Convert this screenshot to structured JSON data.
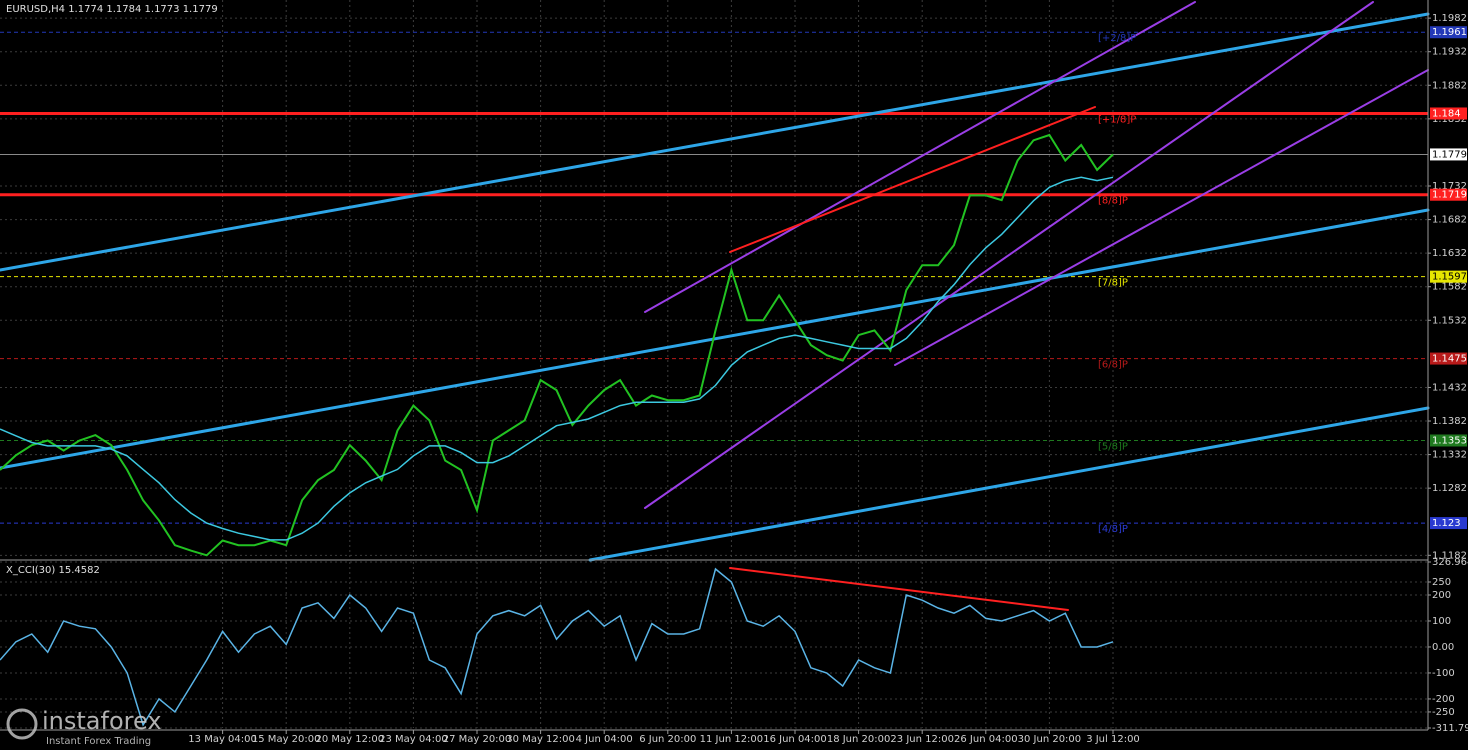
{
  "chart_data": [
    {
      "type": "line",
      "title": "EURUSD,H4  1.1774 1.1784 1.1773 1.1779",
      "categories": [
        null,
        null,
        null,
        null,
        null,
        null,
        null,
        null,
        null,
        null,
        null,
        null,
        null,
        null,
        "13 May 04:00",
        null,
        null,
        null,
        "15 May 20:00",
        null,
        null,
        null,
        "20 May 12:00",
        null,
        null,
        null,
        "23 May 04:00",
        null,
        null,
        null,
        "27 May 20:00",
        null,
        null,
        null,
        "30 May 12:00",
        null,
        null,
        null,
        "4 Jun 04:00",
        null,
        null,
        null,
        "6 Jun 20:00",
        null,
        null,
        null,
        "11 Jun 12:00",
        null,
        null,
        null,
        "16 Jun 04:00",
        null,
        null,
        null,
        "18 Jun 20:00",
        null,
        null,
        null,
        "23 Jun 12:00",
        null,
        null,
        null,
        "26 Jun 04:00",
        null,
        null,
        null,
        "30 Jun 20:00",
        null,
        null,
        null,
        "3 Jul 12:00"
      ],
      "series": [
        {
          "color": "#22c222",
          "values": [
            1.1309,
            1.1331,
            1.1346,
            1.1353,
            1.1338,
            1.1353,
            1.1361,
            1.1346,
            1.1309,
            1.1264,
            1.1234,
            1.1197,
            1.1189,
            1.1182,
            1.1204,
            1.1197,
            1.1197,
            1.1204,
            1.1197,
            1.1264,
            1.1294,
            1.1309,
            1.1346,
            1.1323,
            1.1294,
            1.1368,
            1.1405,
            1.1383,
            1.1323,
            1.1309,
            1.1249,
            1.1353,
            1.1368,
            1.1383,
            1.1443,
            1.1428,
            1.1376,
            1.1405,
            1.1428,
            1.1443,
            1.1405,
            1.142,
            1.1413,
            1.1413,
            1.142,
            1.1517,
            1.1607,
            1.1532,
            1.1532,
            1.1569,
            1.1532,
            1.1495,
            1.148,
            1.1472,
            1.151,
            1.1517,
            1.1487,
            1.1577,
            1.1614,
            1.1614,
            1.1644,
            1.1718,
            1.1718,
            1.1711,
            1.177,
            1.18,
            1.1808,
            1.177,
            1.1793,
            1.1756,
            1.1779
          ]
        },
        {
          "color": "#3cc8e0",
          "values": [
            1.137,
            1.136,
            1.135,
            1.1345,
            1.1345,
            1.1345,
            1.1345,
            1.134,
            1.133,
            1.131,
            1.129,
            1.1265,
            1.1245,
            1.123,
            1.1222,
            1.1215,
            1.121,
            1.1205,
            1.1205,
            1.1215,
            1.123,
            1.1255,
            1.1275,
            1.129,
            1.13,
            1.131,
            1.133,
            1.1345,
            1.1345,
            1.1335,
            1.132,
            1.132,
            1.133,
            1.1345,
            1.136,
            1.1375,
            1.138,
            1.1385,
            1.1395,
            1.1405,
            1.141,
            1.141,
            1.141,
            1.141,
            1.1415,
            1.1435,
            1.1465,
            1.1485,
            1.1495,
            1.1505,
            1.151,
            1.1505,
            1.15,
            1.1495,
            1.149,
            1.149,
            1.149,
            1.1505,
            1.153,
            1.156,
            1.1585,
            1.1615,
            1.164,
            1.166,
            1.1685,
            1.171,
            1.173,
            1.174,
            1.1745,
            1.174,
            1.1745
          ]
        }
      ],
      "ylim": [
        1.1178,
        1.2009
      ],
      "yticks": [
        1.1982,
        1.1932,
        1.1882,
        1.1832,
        1.1732,
        1.1682,
        1.1632,
        1.1582,
        1.1532,
        1.1432,
        1.1382,
        1.1332,
        1.1282,
        1.1182
      ],
      "grid": true,
      "last_price": 1.1779,
      "levels": [
        {
          "name": "[+2/8]P",
          "value": 1.1961,
          "color": "#2338b8"
        },
        {
          "name": "[+1/8]P",
          "value": 1.184,
          "color": "#ff2020"
        },
        {
          "name": "[8/8]P",
          "value": 1.1719,
          "color": "#ff2020"
        },
        {
          "name": "[7/8]P",
          "value": 1.1597,
          "color": "#e6e600"
        },
        {
          "name": "[6/8]P",
          "value": 1.1475,
          "color": "#b81a1a"
        },
        {
          "name": "[5/8]P",
          "value": 1.1353,
          "color": "#1f7a1f"
        },
        {
          "name": "[4/8]P",
          "value": 1.123,
          "color": "#2a3ad0"
        }
      ],
      "watermark": {
        "brand": "instaforex",
        "tagline": "Instant Forex Trading"
      }
    },
    {
      "type": "line",
      "title": "X_CCI(30) 15.4582",
      "series": [
        {
          "color": "#5ab4e6",
          "values": [
            -50,
            20,
            50,
            -20,
            100,
            80,
            70,
            0,
            -100,
            -300,
            -200,
            -250,
            -150,
            -50,
            60,
            -20,
            50,
            80,
            10,
            150,
            170,
            110,
            200,
            150,
            60,
            150,
            130,
            -50,
            -80,
            -180,
            50,
            120,
            140,
            120,
            160,
            30,
            100,
            140,
            80,
            120,
            -50,
            90,
            50,
            50,
            70,
            300,
            250,
            100,
            80,
            120,
            60,
            -80,
            -100,
            -150,
            -50,
            -80,
            -100,
            200,
            180,
            150,
            130,
            160,
            110,
            100,
            120,
            140,
            100,
            130,
            0,
            0,
            20
          ]
        }
      ],
      "ylim": [
        -311.798,
        326.9647
      ],
      "yticks": [
        326.9647,
        250,
        200,
        100,
        {
          "value": 0,
          "label": "0.00"
        },
        -100,
        -200,
        -250,
        -311.798
      ],
      "grid": true
    }
  ]
}
